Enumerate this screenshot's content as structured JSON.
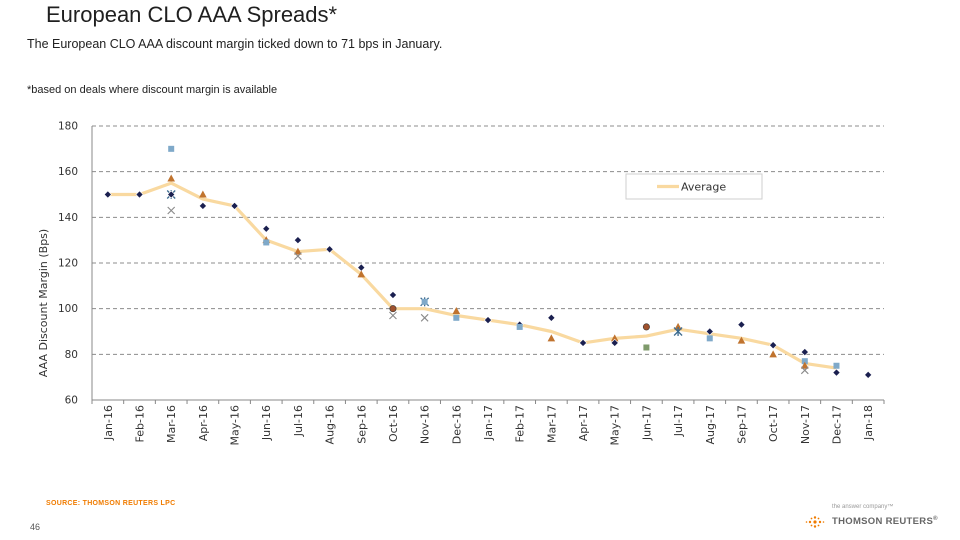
{
  "page": {
    "title": "European CLO AAA Spreads*",
    "subtitle": "The European CLO AAA discount margin ticked down to 71 bps in January.",
    "footnote": "*based on deals where discount margin is available",
    "source": "SOURCE: THOMSON REUTERS LPC",
    "page_number": "46",
    "logo_tagline": "the answer company™",
    "logo_name": "THOMSON REUTERS",
    "logo_mark": "®"
  },
  "colors": {
    "average_line": "#f9d9a0",
    "grid": "#8c8c8c",
    "marker_diamond": "#1a1f4f",
    "marker_square": "#7fa9c9",
    "marker_triangle": "#c0732e",
    "marker_x": "#8a8a8a",
    "marker_circle": "#a0522d",
    "marker_green": "#7f9a6b",
    "source_text": "#f07c00"
  },
  "chart_data": {
    "type": "line",
    "ylabel": "AAA Discount Margin (Bps)",
    "xlabel": "",
    "ylim": [
      60,
      180
    ],
    "yticks": [
      60,
      80,
      100,
      120,
      140,
      160,
      180
    ],
    "grid": true,
    "legend": {
      "position": "top-right",
      "entries": [
        "Average"
      ]
    },
    "categories": [
      "Jan-16",
      "Feb-16",
      "Mar-16",
      "Apr-16",
      "May-16",
      "Jun-16",
      "Jul-16",
      "Aug-16",
      "Sep-16",
      "Oct-16",
      "Nov-16",
      "Dec-16",
      "Jan-17",
      "Feb-17",
      "Mar-17",
      "Apr-17",
      "May-17",
      "Jun-17",
      "Jul-17",
      "Aug-17",
      "Sep-17",
      "Oct-17",
      "Nov-17",
      "Dec-17",
      "Jan-18"
    ],
    "series": [
      {
        "name": "Average",
        "values": [
          150,
          150,
          155,
          148,
          145,
          130,
          125,
          126,
          115,
          100,
          100,
          97,
          95,
          93,
          90,
          85,
          87,
          88,
          91,
          89,
          87,
          84,
          76,
          74,
          null
        ]
      }
    ],
    "deal_points": [
      {
        "category": "Jan-16",
        "value": 150,
        "marker": "diamond"
      },
      {
        "category": "Feb-16",
        "value": 150,
        "marker": "diamond"
      },
      {
        "category": "Mar-16",
        "value": 170,
        "marker": "square"
      },
      {
        "category": "Mar-16",
        "value": 157,
        "marker": "triangle"
      },
      {
        "category": "Mar-16",
        "value": 150,
        "marker": "star"
      },
      {
        "category": "Mar-16",
        "value": 150,
        "marker": "diamond"
      },
      {
        "category": "Mar-16",
        "value": 143,
        "marker": "x"
      },
      {
        "category": "Apr-16",
        "value": 150,
        "marker": "triangle"
      },
      {
        "category": "Apr-16",
        "value": 145,
        "marker": "diamond"
      },
      {
        "category": "May-16",
        "value": 145,
        "marker": "diamond"
      },
      {
        "category": "Jun-16",
        "value": 135,
        "marker": "diamond"
      },
      {
        "category": "Jun-16",
        "value": 130,
        "marker": "triangle"
      },
      {
        "category": "Jun-16",
        "value": 129,
        "marker": "square"
      },
      {
        "category": "Jul-16",
        "value": 130,
        "marker": "diamond"
      },
      {
        "category": "Jul-16",
        "value": 125,
        "marker": "triangle"
      },
      {
        "category": "Jul-16",
        "value": 123,
        "marker": "x"
      },
      {
        "category": "Aug-16",
        "value": 126,
        "marker": "diamond"
      },
      {
        "category": "Sep-16",
        "value": 118,
        "marker": "diamond"
      },
      {
        "category": "Sep-16",
        "value": 115,
        "marker": "triangle"
      },
      {
        "category": "Oct-16",
        "value": 106,
        "marker": "diamond"
      },
      {
        "category": "Oct-16",
        "value": 100,
        "marker": "circle"
      },
      {
        "category": "Oct-16",
        "value": 97,
        "marker": "x"
      },
      {
        "category": "Nov-16",
        "value": 103,
        "marker": "star"
      },
      {
        "category": "Nov-16",
        "value": 103,
        "marker": "square"
      },
      {
        "category": "Nov-16",
        "value": 96,
        "marker": "x"
      },
      {
        "category": "Dec-16",
        "value": 99,
        "marker": "triangle"
      },
      {
        "category": "Dec-16",
        "value": 96,
        "marker": "square"
      },
      {
        "category": "Jan-17",
        "value": 95,
        "marker": "diamond"
      },
      {
        "category": "Feb-17",
        "value": 93,
        "marker": "diamond"
      },
      {
        "category": "Feb-17",
        "value": 92,
        "marker": "square"
      },
      {
        "category": "Mar-17",
        "value": 96,
        "marker": "diamond"
      },
      {
        "category": "Mar-17",
        "value": 87,
        "marker": "triangle"
      },
      {
        "category": "Apr-17",
        "value": 85,
        "marker": "diamond"
      },
      {
        "category": "May-17",
        "value": 87,
        "marker": "triangle"
      },
      {
        "category": "May-17",
        "value": 85,
        "marker": "diamond"
      },
      {
        "category": "Jun-17",
        "value": 92,
        "marker": "circle"
      },
      {
        "category": "Jun-17",
        "value": 83,
        "marker": "green"
      },
      {
        "category": "Jul-17",
        "value": 92,
        "marker": "triangle"
      },
      {
        "category": "Jul-17",
        "value": 90,
        "marker": "star"
      },
      {
        "category": "Aug-17",
        "value": 90,
        "marker": "diamond"
      },
      {
        "category": "Aug-17",
        "value": 87,
        "marker": "square"
      },
      {
        "category": "Sep-17",
        "value": 93,
        "marker": "diamond"
      },
      {
        "category": "Sep-17",
        "value": 86,
        "marker": "triangle"
      },
      {
        "category": "Oct-17",
        "value": 84,
        "marker": "diamond"
      },
      {
        "category": "Oct-17",
        "value": 80,
        "marker": "triangle"
      },
      {
        "category": "Nov-17",
        "value": 81,
        "marker": "diamond"
      },
      {
        "category": "Nov-17",
        "value": 77,
        "marker": "square"
      },
      {
        "category": "Nov-17",
        "value": 75,
        "marker": "triangle"
      },
      {
        "category": "Nov-17",
        "value": 73,
        "marker": "x"
      },
      {
        "category": "Dec-17",
        "value": 75,
        "marker": "square"
      },
      {
        "category": "Dec-17",
        "value": 72,
        "marker": "diamond"
      },
      {
        "category": "Jan-18",
        "value": 71,
        "marker": "diamond"
      }
    ]
  }
}
